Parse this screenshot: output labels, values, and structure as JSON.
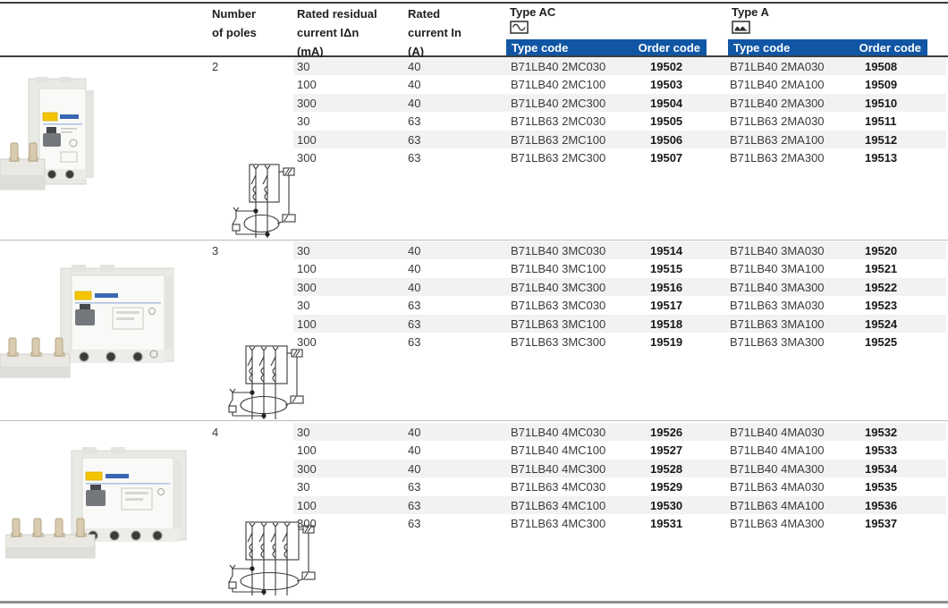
{
  "colors": {
    "header_bar_blue": "#1156a4",
    "row_stripe": "#f2f2f2",
    "rule_dark": "#3d3d3d",
    "rule_light": "#bcbcbc",
    "label_yellow": "#f4c400",
    "brand_blue": "#3a67b2"
  },
  "header": {
    "poles_lines": [
      "Number",
      "of poles"
    ],
    "residual_lines": [
      "Rated residual",
      "current IΔn",
      "(mA)"
    ],
    "rated_lines": [
      "Rated",
      "current In",
      "(A)"
    ],
    "groups": [
      {
        "label": "Type AC",
        "icon": "sine-wave-icon",
        "type_code_label": "Type code",
        "order_code_label": "Order code"
      },
      {
        "label": "Type A",
        "icon": "pulsed-wave-icon",
        "type_code_label": "Type code",
        "order_code_label": "Order code"
      }
    ]
  },
  "sections": [
    {
      "poles": "2",
      "product_photo": "2-pole-rcd-add-on-block",
      "wiring_diagram": "2-pole-wiring-diagram",
      "rows": [
        {
          "residual_ma": "30",
          "rated_a": "40",
          "ac_type_code": "B71LB40 2MC030",
          "ac_order_code": "19502",
          "a_type_code": "B71LB40 2MA030",
          "a_order_code": "19508"
        },
        {
          "residual_ma": "100",
          "rated_a": "40",
          "ac_type_code": "B71LB40 2MC100",
          "ac_order_code": "19503",
          "a_type_code": "B71LB40 2MA100",
          "a_order_code": "19509"
        },
        {
          "residual_ma": "300",
          "rated_a": "40",
          "ac_type_code": "B71LB40 2MC300",
          "ac_order_code": "19504",
          "a_type_code": "B71LB40 2MA300",
          "a_order_code": "19510"
        },
        {
          "residual_ma": "30",
          "rated_a": "63",
          "ac_type_code": "B71LB63 2MC030",
          "ac_order_code": "19505",
          "a_type_code": "B71LB63 2MA030",
          "a_order_code": "19511"
        },
        {
          "residual_ma": "100",
          "rated_a": "63",
          "ac_type_code": "B71LB63 2MC100",
          "ac_order_code": "19506",
          "a_type_code": "B71LB63 2MA100",
          "a_order_code": "19512"
        },
        {
          "residual_ma": "300",
          "rated_a": "63",
          "ac_type_code": "B71LB63 2MC300",
          "ac_order_code": "19507",
          "a_type_code": "B71LB63 2MA300",
          "a_order_code": "19513"
        }
      ]
    },
    {
      "poles": "3",
      "product_photo": "3-pole-rcd-add-on-block",
      "wiring_diagram": "3-pole-wiring-diagram",
      "rows": [
        {
          "residual_ma": "30",
          "rated_a": "40",
          "ac_type_code": "B71LB40 3MC030",
          "ac_order_code": "19514",
          "a_type_code": "B71LB40 3MA030",
          "a_order_code": "19520"
        },
        {
          "residual_ma": "100",
          "rated_a": "40",
          "ac_type_code": "B71LB40 3MC100",
          "ac_order_code": "19515",
          "a_type_code": "B71LB40 3MA100",
          "a_order_code": "19521"
        },
        {
          "residual_ma": "300",
          "rated_a": "40",
          "ac_type_code": "B71LB40 3MC300",
          "ac_order_code": "19516",
          "a_type_code": "B71LB40 3MA300",
          "a_order_code": "19522"
        },
        {
          "residual_ma": "30",
          "rated_a": "63",
          "ac_type_code": "B71LB63 3MC030",
          "ac_order_code": "19517",
          "a_type_code": "B71LB63 3MA030",
          "a_order_code": "19523"
        },
        {
          "residual_ma": "100",
          "rated_a": "63",
          "ac_type_code": "B71LB63 3MC100",
          "ac_order_code": "19518",
          "a_type_code": "B71LB63 3MA100",
          "a_order_code": "19524"
        },
        {
          "residual_ma": "300",
          "rated_a": "63",
          "ac_type_code": "B71LB63 3MC300",
          "ac_order_code": "19519",
          "a_type_code": "B71LB63 3MA300",
          "a_order_code": "19525"
        }
      ]
    },
    {
      "poles": "4",
      "product_photo": "4-pole-rcd-add-on-block",
      "wiring_diagram": "4-pole-wiring-diagram",
      "rows": [
        {
          "residual_ma": "30",
          "rated_a": "40",
          "ac_type_code": "B71LB40 4MC030",
          "ac_order_code": "19526",
          "a_type_code": "B71LB40 4MA030",
          "a_order_code": "19532"
        },
        {
          "residual_ma": "100",
          "rated_a": "40",
          "ac_type_code": "B71LB40 4MC100",
          "ac_order_code": "19527",
          "a_type_code": "B71LB40 4MA100",
          "a_order_code": "19533"
        },
        {
          "residual_ma": "300",
          "rated_a": "40",
          "ac_type_code": "B71LB40 4MC300",
          "ac_order_code": "19528",
          "a_type_code": "B71LB40 4MA300",
          "a_order_code": "19534"
        },
        {
          "residual_ma": "30",
          "rated_a": "63",
          "ac_type_code": "B71LB63 4MC030",
          "ac_order_code": "19529",
          "a_type_code": "B71LB63 4MA030",
          "a_order_code": "19535"
        },
        {
          "residual_ma": "100",
          "rated_a": "63",
          "ac_type_code": "B71LB63 4MC100",
          "ac_order_code": "19530",
          "a_type_code": "B71LB63 4MA100",
          "a_order_code": "19536"
        },
        {
          "residual_ma": "300",
          "rated_a": "63",
          "ac_type_code": "B71LB63 4MC300",
          "ac_order_code": "19531",
          "a_type_code": "B71LB63 4MA300",
          "a_order_code": "19537"
        }
      ]
    }
  ]
}
